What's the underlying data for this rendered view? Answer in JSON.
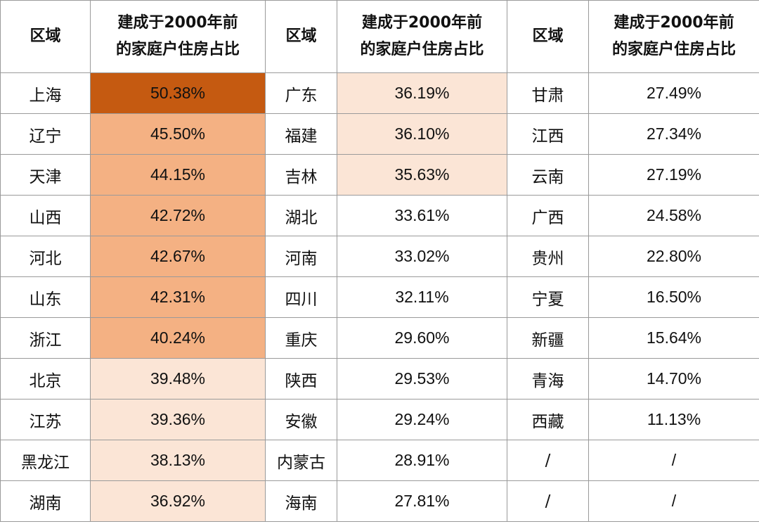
{
  "table": {
    "header": [
      [
        "区域"
      ],
      [
        "建成于2000年前",
        "的家庭户住房占比"
      ],
      [
        "区域"
      ],
      [
        "建成于2000年前",
        "的家庭户住房占比"
      ],
      [
        "区域"
      ],
      [
        "建成于2000年前",
        "的家庭户住房占比"
      ]
    ],
    "rows": [
      [
        "上海",
        "50.38%",
        "广东",
        "36.19%",
        "甘肃",
        "27.49%"
      ],
      [
        "辽宁",
        "45.50%",
        "福建",
        "36.10%",
        "江西",
        "27.34%"
      ],
      [
        "天津",
        "44.15%",
        "吉林",
        "35.63%",
        "云南",
        "27.19%"
      ],
      [
        "山西",
        "42.72%",
        "湖北",
        "33.61%",
        "广西",
        "24.58%"
      ],
      [
        "河北",
        "42.67%",
        "河南",
        "33.02%",
        "贵州",
        "22.80%"
      ],
      [
        "山东",
        "42.31%",
        "四川",
        "32.11%",
        "宁夏",
        "16.50%"
      ],
      [
        "浙江",
        "40.24%",
        "重庆",
        "29.60%",
        "新疆",
        "15.64%"
      ],
      [
        "北京",
        "39.48%",
        "陕西",
        "29.53%",
        "青海",
        "14.70%"
      ],
      [
        "江苏",
        "39.36%",
        "安徽",
        "29.24%",
        "西藏",
        "11.13%"
      ],
      [
        "黑龙江",
        "38.13%",
        "内蒙古",
        "28.91%",
        "/",
        "/"
      ],
      [
        "湖南",
        "36.92%",
        "海南",
        "27.81%",
        "/",
        "/"
      ]
    ]
  }
}
